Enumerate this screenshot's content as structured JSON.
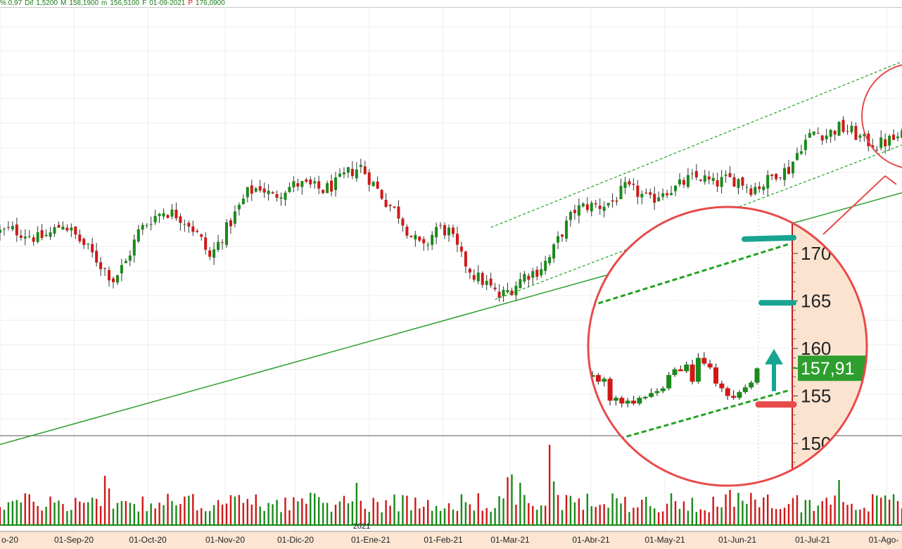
{
  "info_bar": [
    {
      "label": "",
      "value": "% 0,97"
    },
    {
      "label": "Dif",
      "value": "1,5200"
    },
    {
      "label": "M",
      "value": "158,1900"
    },
    {
      "label": "m",
      "value": "156,5100"
    },
    {
      "label": "F",
      "value": "01-09-2021"
    },
    {
      "label": "P",
      "value": "176,0900"
    }
  ],
  "chart_data": {
    "type": "candlestick",
    "title": "",
    "x_tick_labels": [
      "o-20",
      "01-Sep-20",
      "01-Oct-20",
      "01-Nov-20",
      "01-Dic-20",
      "01-Ene-21",
      "01-Feb-21",
      "01-Mar-21",
      "01-Abr-21",
      "01-May-21",
      "01-Jun-21",
      "01-Jul-21",
      "01-Ago-"
    ],
    "year_marker": "2021",
    "close_path": [
      {
        "t": 0,
        "v": 151.0
      },
      {
        "t": 3,
        "v": 151.2
      },
      {
        "t": 6,
        "v": 150.8
      },
      {
        "t": 9,
        "v": 150.2
      },
      {
        "t": 12,
        "v": 150.8
      },
      {
        "t": 15,
        "v": 152.0
      },
      {
        "t": 18,
        "v": 150.5
      },
      {
        "t": 21,
        "v": 149.0
      },
      {
        "t": 24,
        "v": 147.2
      },
      {
        "t": 27,
        "v": 145.5
      },
      {
        "t": 30,
        "v": 147.5
      },
      {
        "t": 33,
        "v": 151.0
      },
      {
        "t": 36,
        "v": 152.5
      },
      {
        "t": 39,
        "v": 153.4
      },
      {
        "t": 42,
        "v": 153.0
      },
      {
        "t": 45,
        "v": 152.0
      },
      {
        "t": 48,
        "v": 150.0
      },
      {
        "t": 50,
        "v": 148.0
      },
      {
        "t": 53,
        "v": 150.5
      },
      {
        "t": 56,
        "v": 153.0
      },
      {
        "t": 59,
        "v": 155.5
      },
      {
        "t": 62,
        "v": 156.2
      },
      {
        "t": 65,
        "v": 155.0
      },
      {
        "t": 68,
        "v": 156.0
      },
      {
        "t": 71,
        "v": 156.5
      },
      {
        "t": 74,
        "v": 156.2
      },
      {
        "t": 77,
        "v": 155.8
      },
      {
        "t": 80,
        "v": 156.5
      },
      {
        "t": 83,
        "v": 157.8
      },
      {
        "t": 86,
        "v": 158.5
      },
      {
        "t": 89,
        "v": 156.5
      },
      {
        "t": 92,
        "v": 154.5
      },
      {
        "t": 95,
        "v": 153.0
      },
      {
        "t": 98,
        "v": 150.5
      },
      {
        "t": 101,
        "v": 149.0
      },
      {
        "t": 104,
        "v": 151.5
      },
      {
        "t": 107,
        "v": 151.0
      },
      {
        "t": 110,
        "v": 148.0
      },
      {
        "t": 113,
        "v": 146.0
      },
      {
        "t": 116,
        "v": 145.0
      },
      {
        "t": 119,
        "v": 143.5
      },
      {
        "t": 122,
        "v": 144.5
      },
      {
        "t": 125,
        "v": 146.0
      },
      {
        "t": 128,
        "v": 146.5
      },
      {
        "t": 131,
        "v": 148.0
      },
      {
        "t": 134,
        "v": 151.0
      },
      {
        "t": 137,
        "v": 153.5
      },
      {
        "t": 140,
        "v": 154.0
      },
      {
        "t": 143,
        "v": 154.0
      },
      {
        "t": 146,
        "v": 154.5
      },
      {
        "t": 149,
        "v": 156.0
      },
      {
        "t": 152,
        "v": 155.5
      },
      {
        "t": 155,
        "v": 154.5
      },
      {
        "t": 158,
        "v": 155.8
      },
      {
        "t": 161,
        "v": 156.0
      },
      {
        "t": 164,
        "v": 157.0
      },
      {
        "t": 167,
        "v": 157.3
      },
      {
        "t": 170,
        "v": 156.5
      },
      {
        "t": 173,
        "v": 157.0
      },
      {
        "t": 176,
        "v": 157.0
      },
      {
        "t": 179,
        "v": 156.0
      },
      {
        "t": 182,
        "v": 156.5
      },
      {
        "t": 185,
        "v": 157.8
      },
      {
        "t": 188,
        "v": 158.2
      },
      {
        "t": 191,
        "v": 161.0
      },
      {
        "t": 194,
        "v": 162.5
      },
      {
        "t": 197,
        "v": 162.2
      },
      {
        "t": 200,
        "v": 163.0
      },
      {
        "t": 203,
        "v": 162.5
      },
      {
        "t": 206,
        "v": 161.5
      },
      {
        "t": 209,
        "v": 161.0
      },
      {
        "t": 212,
        "v": 161.5
      },
      {
        "t": 215,
        "v": 162.0
      }
    ],
    "trendlines": [
      {
        "name": "long-support",
        "style": "solid",
        "from": {
          "t": 0,
          "v": 126.5
        },
        "to": {
          "t": 215,
          "v": 155.5
        }
      },
      {
        "name": "channel-upper",
        "style": "dashed",
        "from": {
          "t": 117,
          "v": 151.5
        },
        "to": {
          "t": 215,
          "v": 170.6
        }
      },
      {
        "name": "channel-lower",
        "style": "dashed",
        "from": {
          "t": 118,
          "v": 143.2
        },
        "to": {
          "t": 215,
          "v": 161.0
        }
      }
    ],
    "inset": {
      "y_ticks": [
        170,
        165,
        160,
        155,
        150
      ],
      "current_price_label": "157,91",
      "current_price": 157.91,
      "resistance_marks": [
        171.5,
        164.8
      ],
      "support_mark": 154.1,
      "arrow": {
        "from": 155.5,
        "to": 159.5
      },
      "channel_upper": {
        "from": 164.5,
        "to": 171.0
      },
      "channel_lower": {
        "from": 150.5,
        "to": 155.6
      },
      "candles": [
        {
          "o": 157.0,
          "h": 157.6,
          "l": 156.8,
          "c": 157.2
        },
        {
          "o": 157.2,
          "h": 157.4,
          "l": 156.2,
          "c": 156.5
        },
        {
          "o": 156.5,
          "h": 157.0,
          "l": 156.0,
          "c": 156.8
        },
        {
          "o": 156.8,
          "h": 157.0,
          "l": 154.0,
          "c": 154.5
        },
        {
          "o": 154.5,
          "h": 155.0,
          "l": 154.0,
          "c": 154.8
        },
        {
          "o": 154.8,
          "h": 155.0,
          "l": 153.8,
          "c": 154.2
        },
        {
          "o": 154.2,
          "h": 154.8,
          "l": 153.8,
          "c": 154.5
        },
        {
          "o": 154.5,
          "h": 155.0,
          "l": 154.0,
          "c": 154.2
        },
        {
          "o": 154.2,
          "h": 155.0,
          "l": 154.0,
          "c": 154.8
        },
        {
          "o": 154.8,
          "h": 155.0,
          "l": 154.6,
          "c": 154.9
        },
        {
          "o": 154.9,
          "h": 155.8,
          "l": 154.8,
          "c": 155.3
        },
        {
          "o": 155.3,
          "h": 155.8,
          "l": 155.0,
          "c": 155.5
        },
        {
          "o": 155.5,
          "h": 156.0,
          "l": 155.3,
          "c": 155.8
        },
        {
          "o": 155.8,
          "h": 157.5,
          "l": 155.6,
          "c": 157.2
        },
        {
          "o": 157.2,
          "h": 158.0,
          "l": 157.0,
          "c": 157.8
        },
        {
          "o": 157.8,
          "h": 158.2,
          "l": 157.6,
          "c": 157.6
        },
        {
          "o": 157.6,
          "h": 158.6,
          "l": 157.4,
          "c": 158.3
        },
        {
          "o": 158.3,
          "h": 158.8,
          "l": 156.2,
          "c": 156.5
        },
        {
          "o": 156.5,
          "h": 159.5,
          "l": 156.3,
          "c": 159.0
        },
        {
          "o": 159.0,
          "h": 159.6,
          "l": 158.2,
          "c": 158.4
        },
        {
          "o": 158.4,
          "h": 158.8,
          "l": 157.8,
          "c": 158.0
        },
        {
          "o": 158.0,
          "h": 158.4,
          "l": 156.0,
          "c": 156.3
        },
        {
          "o": 156.3,
          "h": 156.6,
          "l": 155.4,
          "c": 155.8
        },
        {
          "o": 155.8,
          "h": 156.0,
          "l": 154.6,
          "c": 155.0
        },
        {
          "o": 155.0,
          "h": 155.6,
          "l": 154.6,
          "c": 154.8
        },
        {
          "o": 154.8,
          "h": 155.6,
          "l": 154.6,
          "c": 155.4
        },
        {
          "o": 155.4,
          "h": 156.2,
          "l": 155.2,
          "c": 155.9
        },
        {
          "o": 155.9,
          "h": 156.6,
          "l": 155.7,
          "c": 156.4
        },
        {
          "o": 156.4,
          "h": 158.0,
          "l": 156.2,
          "c": 157.9
        }
      ]
    },
    "colors": {
      "up": "#1a8a1a",
      "down": "#d01818",
      "trend": "#2e9e2e",
      "channel": "#22a322",
      "circle": "#e84a4a",
      "teal": "#17a592",
      "price_label_bg": "#2e9e2e",
      "inset_axis_bg": "#fbe3d0"
    }
  }
}
